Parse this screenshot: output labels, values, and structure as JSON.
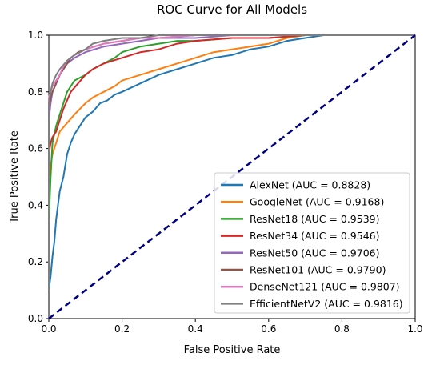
{
  "chart_data": {
    "type": "line",
    "title": "ROC Curve for All Models",
    "xlabel": "False Positive Rate",
    "ylabel": "True Positive Rate",
    "xlim": [
      0.0,
      1.0
    ],
    "ylim": [
      0.0,
      1.0
    ],
    "x_ticks": [
      "0.0",
      "0.2",
      "0.4",
      "0.6",
      "0.8",
      "1.0"
    ],
    "y_ticks": [
      "0.0",
      "0.2",
      "0.4",
      "0.6",
      "0.8",
      "1.0"
    ],
    "grid": false,
    "legend_position": "lower-right",
    "diagonal": {
      "color": "#000080",
      "style": "dashed"
    },
    "series": [
      {
        "name": "AlexNet (AUC = 0.8828)",
        "color": "#1f77b4",
        "x": [
          0,
          0,
          0.005,
          0.01,
          0.015,
          0.02,
          0.03,
          0.04,
          0.05,
          0.06,
          0.07,
          0.08,
          0.1,
          0.12,
          0.14,
          0.16,
          0.18,
          0.2,
          0.25,
          0.3,
          0.35,
          0.4,
          0.45,
          0.5,
          0.55,
          0.6,
          0.65,
          0.7,
          0.75,
          1.0
        ],
        "y": [
          0,
          0.1,
          0.15,
          0.22,
          0.27,
          0.35,
          0.45,
          0.5,
          0.58,
          0.62,
          0.65,
          0.67,
          0.71,
          0.73,
          0.76,
          0.77,
          0.79,
          0.8,
          0.83,
          0.86,
          0.88,
          0.9,
          0.92,
          0.93,
          0.95,
          0.96,
          0.98,
          0.99,
          1.0,
          1.0
        ]
      },
      {
        "name": "GoogleNet (AUC = 0.9168)",
        "color": "#ff7f0e",
        "x": [
          0,
          0,
          0.01,
          0.02,
          0.03,
          0.05,
          0.07,
          0.1,
          0.12,
          0.15,
          0.18,
          0.2,
          0.25,
          0.3,
          0.35,
          0.4,
          0.45,
          0.5,
          0.55,
          0.6,
          0.65,
          0.7,
          1.0
        ],
        "y": [
          0,
          0.5,
          0.58,
          0.62,
          0.66,
          0.69,
          0.72,
          0.76,
          0.78,
          0.8,
          0.82,
          0.84,
          0.86,
          0.88,
          0.9,
          0.92,
          0.94,
          0.95,
          0.96,
          0.97,
          0.99,
          1.0,
          1.0
        ]
      },
      {
        "name": "ResNet18 (AUC = 0.9539)",
        "color": "#2ca02c",
        "x": [
          0,
          0,
          0.005,
          0.01,
          0.02,
          0.03,
          0.04,
          0.05,
          0.07,
          0.1,
          0.12,
          0.15,
          0.18,
          0.2,
          0.25,
          0.3,
          0.35,
          0.4,
          0.5,
          0.6,
          0.7,
          1.0
        ],
        "y": [
          0,
          0.34,
          0.5,
          0.62,
          0.68,
          0.72,
          0.76,
          0.8,
          0.84,
          0.86,
          0.88,
          0.9,
          0.92,
          0.94,
          0.96,
          0.97,
          0.98,
          0.98,
          0.99,
          0.99,
          1.0,
          1.0
        ]
      },
      {
        "name": "ResNet34 (AUC = 0.9546)",
        "color": "#d62728",
        "x": [
          0,
          0,
          0.005,
          0.01,
          0.02,
          0.03,
          0.04,
          0.05,
          0.06,
          0.08,
          0.1,
          0.12,
          0.15,
          0.2,
          0.25,
          0.3,
          0.35,
          0.4,
          0.5,
          0.6,
          0.7,
          1.0
        ],
        "y": [
          0,
          0.58,
          0.62,
          0.64,
          0.66,
          0.7,
          0.74,
          0.77,
          0.8,
          0.83,
          0.86,
          0.88,
          0.9,
          0.92,
          0.94,
          0.95,
          0.97,
          0.98,
          0.99,
          0.99,
          1.0,
          1.0
        ]
      },
      {
        "name": "ResNet50 (AUC = 0.9706)",
        "color": "#9467bd",
        "x": [
          0,
          0,
          0.005,
          0.01,
          0.02,
          0.03,
          0.04,
          0.05,
          0.07,
          0.1,
          0.15,
          0.2,
          0.25,
          0.3,
          0.4,
          0.5,
          0.6,
          1.0
        ],
        "y": [
          0,
          0.7,
          0.76,
          0.8,
          0.83,
          0.86,
          0.88,
          0.9,
          0.92,
          0.94,
          0.96,
          0.97,
          0.98,
          0.99,
          0.99,
          1.0,
          1.0,
          1.0
        ]
      },
      {
        "name": "ResNet101 (AUC = 0.9790)",
        "color": "#8c564b",
        "x": [
          0,
          0,
          0.005,
          0.01,
          0.02,
          0.03,
          0.04,
          0.05,
          0.06,
          0.08,
          0.1,
          0.15,
          0.2,
          0.25,
          0.3,
          0.4,
          0.5,
          1.0
        ],
        "y": [
          0,
          0.74,
          0.78,
          0.8,
          0.83,
          0.86,
          0.88,
          0.9,
          0.92,
          0.94,
          0.95,
          0.97,
          0.98,
          0.99,
          0.99,
          1.0,
          1.0,
          1.0
        ]
      },
      {
        "name": "DenseNet121 (AUC = 0.9807)",
        "color": "#e377c2",
        "x": [
          0,
          0,
          0.005,
          0.01,
          0.02,
          0.03,
          0.04,
          0.05,
          0.07,
          0.1,
          0.15,
          0.2,
          0.25,
          0.3,
          0.4,
          0.5,
          1.0
        ],
        "y": [
          0,
          0.78,
          0.8,
          0.82,
          0.84,
          0.86,
          0.89,
          0.91,
          0.93,
          0.95,
          0.97,
          0.98,
          0.99,
          0.99,
          1.0,
          1.0,
          1.0
        ]
      },
      {
        "name": "EfficientNetV2 (AUC = 0.9816)",
        "color": "#7f7f7f",
        "x": [
          0,
          0,
          0.005,
          0.01,
          0.02,
          0.03,
          0.05,
          0.07,
          0.1,
          0.12,
          0.15,
          0.2,
          0.25,
          0.3,
          0.4,
          0.5,
          1.0
        ],
        "y": [
          0,
          0.76,
          0.8,
          0.83,
          0.86,
          0.88,
          0.91,
          0.93,
          0.95,
          0.97,
          0.98,
          0.99,
          0.99,
          1.0,
          1.0,
          1.0,
          1.0
        ]
      }
    ]
  }
}
